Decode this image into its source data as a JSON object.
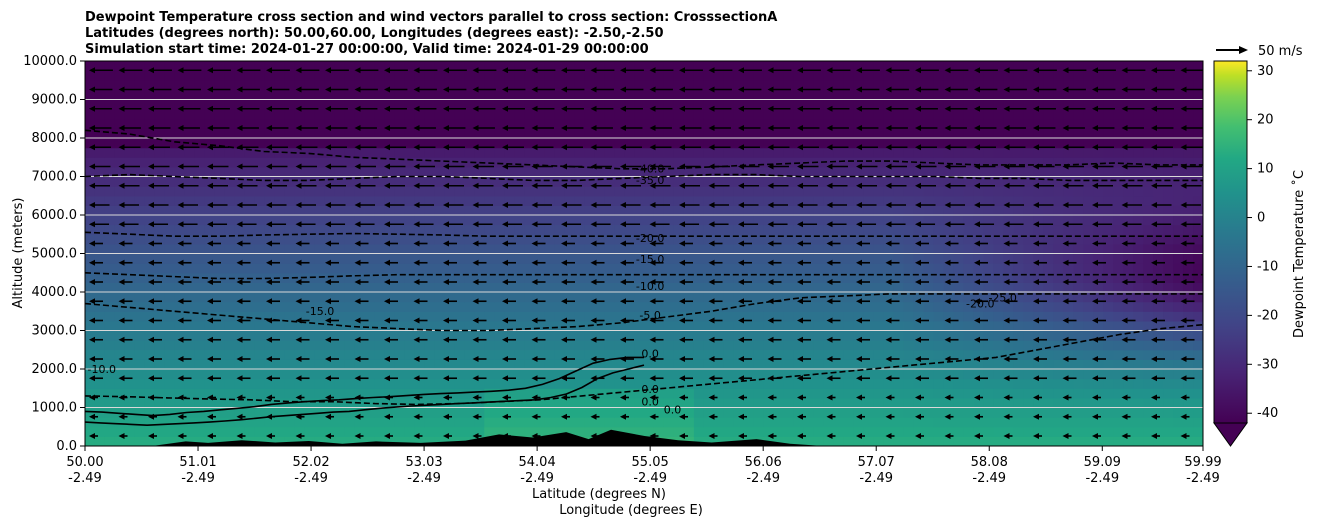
{
  "chart_data": {
    "type": "contour",
    "title_lines": [
      "Dewpoint Temperature cross section and wind vectors parallel to cross section: CrosssectionA",
      "Latitudes (degrees north): 50.00,60.00, Longitudes (degrees east): -2.50,-2.50",
      "Simulation start time: 2024-01-27 00:00:00, Valid time: 2024-01-29 00:00:00"
    ],
    "xlabel": "Latitude (degrees N)",
    "xlabel2": "Longitude (degrees E)",
    "ylabel": "Altitude (meters)",
    "x_ticks": [
      {
        "lat": 50.0,
        "lat_label": "50.00",
        "lon_label": "-2.49"
      },
      {
        "lat": 51.01,
        "lat_label": "51.01",
        "lon_label": "-2.49"
      },
      {
        "lat": 52.02,
        "lat_label": "52.02",
        "lon_label": "-2.49"
      },
      {
        "lat": 53.03,
        "lat_label": "53.03",
        "lon_label": "-2.49"
      },
      {
        "lat": 54.04,
        "lat_label": "54.04",
        "lon_label": "-2.49"
      },
      {
        "lat": 55.05,
        "lat_label": "55.05",
        "lon_label": "-2.49"
      },
      {
        "lat": 56.06,
        "lat_label": "56.06",
        "lon_label": "-2.49"
      },
      {
        "lat": 57.07,
        "lat_label": "57.07",
        "lon_label": "-2.49"
      },
      {
        "lat": 58.08,
        "lat_label": "58.08",
        "lon_label": "-2.49"
      },
      {
        "lat": 59.09,
        "lat_label": "59.09",
        "lon_label": "-2.49"
      },
      {
        "lat": 59.99,
        "lat_label": "59.99",
        "lon_label": "-2.49"
      }
    ],
    "xlim": [
      50.0,
      59.99
    ],
    "y_ticks": [
      "0.0",
      "1000.0",
      "2000.0",
      "3000.0",
      "4000.0",
      "5000.0",
      "6000.0",
      "7000.0",
      "8000.0",
      "9000.0",
      "10000.0"
    ],
    "ylim": [
      0,
      10000
    ],
    "grid": "horizontal",
    "colorbar": {
      "label": "Dewpoint Temperature ˚C",
      "ticks": [
        30,
        20,
        10,
        0,
        -10,
        -20,
        -30,
        -40
      ],
      "range": [
        -42,
        32
      ],
      "extend": "min",
      "colormap": "viridis"
    },
    "quiver_key": {
      "label": "50 m/s"
    },
    "wind_direction": "toward decreasing latitude (southward)",
    "contour_lines": [
      {
        "level": "0.0",
        "style": "solid",
        "alt": [
          900,
          880,
          850,
          820,
          790,
          820,
          870,
          900,
          940,
          980,
          1020,
          1080,
          1120,
          1150,
          1180,
          1200,
          1230,
          1260,
          1280,
          1310,
          1340,
          1360,
          1380,
          1400,
          1420,
          1450,
          1500,
          1600,
          1750,
          1950,
          2150,
          2250,
          2300,
          2300
        ]
      },
      {
        "level": "0.0",
        "style": "solid",
        "alt": [
          620,
          600,
          580,
          560,
          540,
          560,
          580,
          600,
          620,
          650,
          680,
          720,
          760,
          790,
          820,
          850,
          880,
          900,
          940,
          980,
          1010,
          1040,
          1060,
          1080,
          1100,
          1120,
          1140,
          1160,
          1180,
          1200,
          1260,
          1350,
          1520,
          1750,
          1900,
          2000,
          2100
        ]
      },
      {
        "level": "-5.0",
        "style": "dashed",
        "alt": [
          1300,
          1280,
          1250,
          1220,
          1200,
          1150,
          1150,
          1100,
          1080,
          1100,
          1150,
          1200,
          1300,
          1400,
          1500,
          1600,
          1700,
          1800,
          1900,
          2000,
          2100,
          2200,
          2300,
          2500,
          2700,
          2900,
          3050,
          3150
        ]
      },
      {
        "level": "-10.0",
        "style": "dashed",
        "alt": [
          3700,
          3600,
          3500,
          3400,
          3300,
          3200,
          3100,
          3050,
          3000,
          3000,
          3050,
          3100,
          3200,
          3350,
          3500,
          3700,
          3850,
          3900,
          3950,
          3950,
          3950,
          3950,
          3950,
          3950,
          3950,
          3950
        ]
      },
      {
        "level": "-15.0",
        "style": "dashed",
        "alt": [
          4500,
          4450,
          4400,
          4350,
          4350,
          4380,
          4420,
          4450,
          4450,
          4450,
          4450,
          4450,
          4450,
          4450,
          4450,
          4450,
          4450,
          4450,
          4450,
          4450,
          4450,
          4450,
          4450,
          4450,
          4450,
          4450
        ]
      },
      {
        "level": "-20.0",
        "style": "dashed",
        "alt": [
          5550,
          5500,
          5450,
          5450,
          5480,
          5500,
          5520,
          5500,
          5480,
          5450,
          5450,
          5450,
          5450,
          5450,
          5450,
          5450,
          5450,
          5450,
          5450,
          5450,
          5450,
          5450,
          5450,
          5450,
          5450,
          5450
        ]
      },
      {
        "level": "-35.0",
        "style": "dashed",
        "alt": [
          7000,
          7050,
          7000,
          6950,
          6900,
          6900,
          6950,
          7000,
          7000,
          6950,
          6900,
          6900,
          6950,
          7000,
          7050,
          7050,
          7000,
          7000,
          7000,
          7000,
          6950,
          6950,
          6900,
          6900,
          6900,
          6900
        ]
      },
      {
        "level": "-40.0",
        "style": "dashed",
        "alt": [
          8200,
          8100,
          7900,
          7800,
          7650,
          7600,
          7500,
          7450,
          7400,
          7350,
          7300,
          7250,
          7200,
          7200,
          7250,
          7300,
          7350,
          7400,
          7400,
          7350,
          7300,
          7300,
          7300,
          7350,
          7300,
          7300
        ]
      }
    ],
    "contour_labels": [
      {
        "text": "-40.0",
        "lat": 55.05,
        "alt": 7100
      },
      {
        "text": "-35.0",
        "lat": 55.05,
        "alt": 6800
      },
      {
        "text": "-20.0",
        "lat": 55.05,
        "alt": 5300
      },
      {
        "text": "-15.0",
        "lat": 55.05,
        "alt": 4750
      },
      {
        "text": "-10.0",
        "lat": 55.05,
        "alt": 4050
      },
      {
        "text": "-5.0",
        "lat": 55.05,
        "alt": 3300
      },
      {
        "text": "0.0",
        "lat": 55.05,
        "alt": 2300
      },
      {
        "text": "0.0",
        "lat": 55.05,
        "alt": 1380
      },
      {
        "text": "0.0",
        "lat": 55.05,
        "alt": 1050
      },
      {
        "text": "0.0",
        "lat": 55.25,
        "alt": 850
      },
      {
        "text": "-15.0",
        "lat": 52.1,
        "alt": 3400
      },
      {
        "text": "-10.0",
        "lat": 50.15,
        "alt": 1900
      },
      {
        "text": "-20.0",
        "lat": 58.0,
        "alt": 3600
      },
      {
        "text": "-25.0",
        "lat": 58.2,
        "alt": 3750
      }
    ]
  }
}
